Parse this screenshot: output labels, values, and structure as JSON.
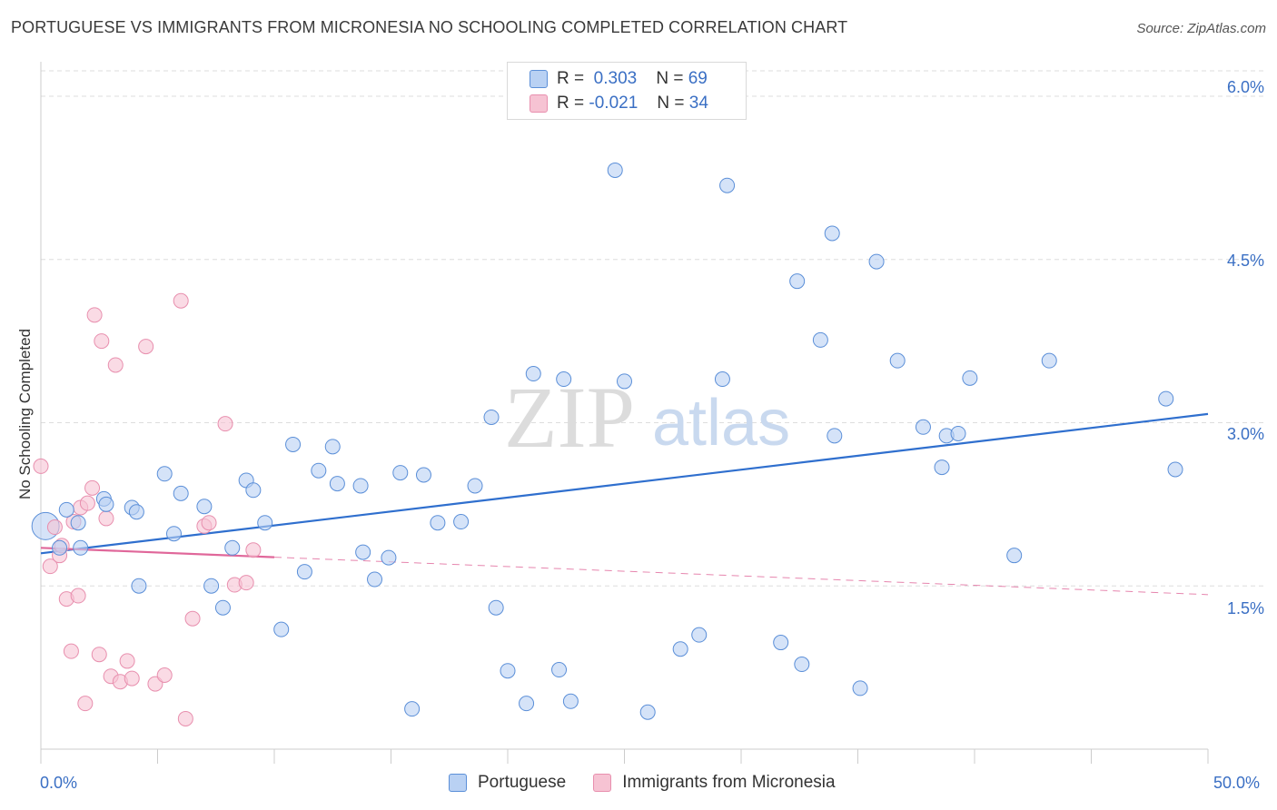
{
  "header": {
    "title": "PORTUGUESE VS IMMIGRANTS FROM MICRONESIA NO SCHOOLING COMPLETED CORRELATION CHART",
    "source": "Source: ZipAtlas.com"
  },
  "watermark": {
    "zip": "ZIP",
    "atlas": "atlas"
  },
  "legend": {
    "rows": [
      {
        "r_label": "R =",
        "r_value": "0.303",
        "n_label": "N =",
        "n_value": "69"
      },
      {
        "r_label": "R =",
        "r_value": "-0.021",
        "n_label": "N =",
        "n_value": "34"
      }
    ]
  },
  "colors": {
    "blue": "#5b8fd8",
    "blue_fill": "#b9d1f3",
    "blue_line": "#2f6fce",
    "pink": "#e88fae",
    "pink_fill": "#f6c3d3",
    "pink_line": "#e0679a",
    "grid": "#dddddd",
    "axis_text": "#3a6fc4"
  },
  "chart_data": {
    "type": "scatter",
    "title": "PORTUGUESE VS IMMIGRANTS FROM MICRONESIA NO SCHOOLING COMPLETED CORRELATION CHART",
    "xlabel": "",
    "ylabel": "No Schooling Completed",
    "x_tick_labels": [
      "0.0%",
      "50.0%"
    ],
    "y_tick_labels": [
      "1.5%",
      "3.0%",
      "4.5%",
      "6.0%"
    ],
    "y_ticks": [
      1.5,
      3.0,
      4.5,
      6.0
    ],
    "xlim": [
      0,
      50
    ],
    "ylim": [
      0,
      6.35
    ],
    "grid": true,
    "legend_position": "top-center",
    "series": [
      {
        "name": "Portuguese",
        "R": 0.303,
        "N": 69,
        "trend": {
          "x": [
            0,
            50
          ],
          "y": [
            1.8,
            3.08
          ]
        },
        "points": [
          [
            0.2,
            2.05
          ],
          [
            0.8,
            1.85
          ],
          [
            1.7,
            1.85
          ],
          [
            1.1,
            2.2
          ],
          [
            1.6,
            2.08
          ],
          [
            2.7,
            2.3
          ],
          [
            3.9,
            2.22
          ],
          [
            4.1,
            2.18
          ],
          [
            2.8,
            2.25
          ],
          [
            4.2,
            1.5
          ],
          [
            5.3,
            2.53
          ],
          [
            5.7,
            1.98
          ],
          [
            6.0,
            2.35
          ],
          [
            7.0,
            2.23
          ],
          [
            7.3,
            1.5
          ],
          [
            7.8,
            1.3
          ],
          [
            8.2,
            1.85
          ],
          [
            8.8,
            2.47
          ],
          [
            9.1,
            2.38
          ],
          [
            9.6,
            2.08
          ],
          [
            10.3,
            1.1
          ],
          [
            10.8,
            2.8
          ],
          [
            11.3,
            1.63
          ],
          [
            11.9,
            2.56
          ],
          [
            12.5,
            2.78
          ],
          [
            12.7,
            2.44
          ],
          [
            13.7,
            2.42
          ],
          [
            13.8,
            1.81
          ],
          [
            14.3,
            1.56
          ],
          [
            14.9,
            1.76
          ],
          [
            15.4,
            2.54
          ],
          [
            15.9,
            0.37
          ],
          [
            16.4,
            2.52
          ],
          [
            17.0,
            2.08
          ],
          [
            18.0,
            2.09
          ],
          [
            18.6,
            2.42
          ],
          [
            19.3,
            3.05
          ],
          [
            19.5,
            1.3
          ],
          [
            20.0,
            0.72
          ],
          [
            20.8,
            0.42
          ],
          [
            21.1,
            3.45
          ],
          [
            22.2,
            0.73
          ],
          [
            22.7,
            0.44
          ],
          [
            22.4,
            3.4
          ],
          [
            24.6,
            5.32
          ],
          [
            25.0,
            3.38
          ],
          [
            26.0,
            0.34
          ],
          [
            27.4,
            0.92
          ],
          [
            28.2,
            1.05
          ],
          [
            29.2,
            3.4
          ],
          [
            29.4,
            5.18
          ],
          [
            31.7,
            0.98
          ],
          [
            32.4,
            4.3
          ],
          [
            32.6,
            0.78
          ],
          [
            33.4,
            3.76
          ],
          [
            34.0,
            2.88
          ],
          [
            33.9,
            4.74
          ],
          [
            35.1,
            0.56
          ],
          [
            35.8,
            4.48
          ],
          [
            36.7,
            3.57
          ],
          [
            37.8,
            2.96
          ],
          [
            38.6,
            2.59
          ],
          [
            38.8,
            2.88
          ],
          [
            39.3,
            2.9
          ],
          [
            39.8,
            3.41
          ],
          [
            41.7,
            1.78
          ],
          [
            43.2,
            3.57
          ],
          [
            48.2,
            3.22
          ],
          [
            48.6,
            2.57
          ]
        ]
      },
      {
        "name": "Immigrants from Micronesia",
        "R": -0.021,
        "N": 34,
        "trend": {
          "x": [
            0,
            50
          ],
          "y": [
            1.85,
            1.42
          ]
        },
        "points": [
          [
            0.0,
            2.6
          ],
          [
            0.4,
            1.68
          ],
          [
            0.6,
            2.04
          ],
          [
            0.8,
            1.78
          ],
          [
            0.9,
            1.87
          ],
          [
            1.1,
            1.38
          ],
          [
            1.3,
            0.9
          ],
          [
            1.4,
            2.09
          ],
          [
            1.6,
            1.41
          ],
          [
            1.7,
            2.22
          ],
          [
            1.9,
            0.42
          ],
          [
            2.0,
            2.26
          ],
          [
            2.2,
            2.4
          ],
          [
            2.3,
            3.99
          ],
          [
            2.5,
            0.87
          ],
          [
            2.6,
            3.75
          ],
          [
            2.8,
            2.12
          ],
          [
            3.0,
            0.67
          ],
          [
            3.2,
            3.53
          ],
          [
            3.4,
            0.62
          ],
          [
            3.7,
            0.81
          ],
          [
            3.9,
            0.65
          ],
          [
            4.5,
            3.7
          ],
          [
            4.9,
            0.6
          ],
          [
            5.3,
            0.68
          ],
          [
            6.0,
            4.12
          ],
          [
            6.2,
            0.28
          ],
          [
            6.5,
            1.2
          ],
          [
            7.0,
            2.05
          ],
          [
            7.2,
            2.08
          ],
          [
            7.9,
            2.99
          ],
          [
            8.3,
            1.51
          ],
          [
            8.8,
            1.53
          ],
          [
            9.1,
            1.83
          ]
        ]
      }
    ]
  },
  "bottom_legend": {
    "items": [
      "Portuguese",
      "Immigrants from Micronesia"
    ]
  }
}
